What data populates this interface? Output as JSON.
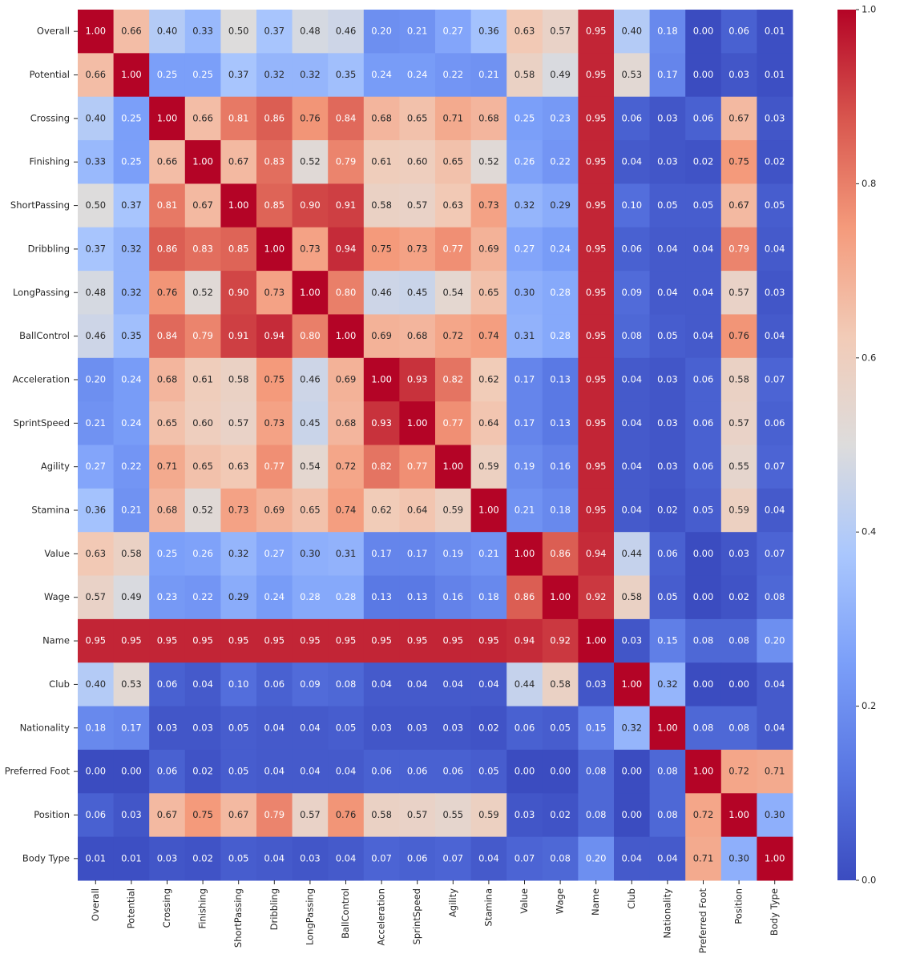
{
  "chart_data": {
    "type": "heatmap",
    "colormap": "coolwarm",
    "x_categories": [
      "Overall",
      "Potential",
      "Crossing",
      "Finishing",
      "ShortPassing",
      "Dribbling",
      "LongPassing",
      "BallControl",
      "Acceleration",
      "SprintSpeed",
      "Agility",
      "Stamina",
      "Value",
      "Wage",
      "Name",
      "Club",
      "Nationality",
      "Preferred Foot",
      "Position",
      "Body Type"
    ],
    "y_categories": [
      "Overall",
      "Potential",
      "Crossing",
      "Finishing",
      "ShortPassing",
      "Dribbling",
      "LongPassing",
      "BallControl",
      "Acceleration",
      "SprintSpeed",
      "Agility",
      "Stamina",
      "Value",
      "Wage",
      "Name",
      "Club",
      "Nationality",
      "Preferred Foot",
      "Position",
      "Body Type"
    ],
    "values": [
      [
        1,
        0.66,
        0.4,
        0.33,
        0.5,
        0.37,
        0.48,
        0.46,
        0.2,
        0.21,
        0.27,
        0.36,
        0.63,
        0.57,
        0.95,
        0.4,
        0.18,
        0,
        0.06,
        0.01
      ],
      [
        0.66,
        1,
        0.25,
        0.25,
        0.37,
        0.32,
        0.32,
        0.35,
        0.24,
        0.24,
        0.22,
        0.21,
        0.58,
        0.49,
        0.95,
        0.53,
        0.17,
        0,
        0.03,
        0.01
      ],
      [
        0.4,
        0.25,
        1,
        0.66,
        0.81,
        0.86,
        0.76,
        0.84,
        0.68,
        0.65,
        0.71,
        0.68,
        0.25,
        0.23,
        0.95,
        0.06,
        0.03,
        0.06,
        0.67,
        0.03
      ],
      [
        0.33,
        0.25,
        0.66,
        1,
        0.67,
        0.83,
        0.52,
        0.79,
        0.61,
        0.6,
        0.65,
        0.52,
        0.26,
        0.22,
        0.95,
        0.04,
        0.03,
        0.02,
        0.75,
        0.02
      ],
      [
        0.5,
        0.37,
        0.81,
        0.67,
        1,
        0.85,
        0.9,
        0.91,
        0.58,
        0.57,
        0.63,
        0.73,
        0.32,
        0.29,
        0.95,
        0.1,
        0.05,
        0.05,
        0.67,
        0.05
      ],
      [
        0.37,
        0.32,
        0.86,
        0.83,
        0.85,
        1,
        0.73,
        0.94,
        0.75,
        0.73,
        0.77,
        0.69,
        0.27,
        0.24,
        0.95,
        0.06,
        0.04,
        0.04,
        0.79,
        0.04
      ],
      [
        0.48,
        0.32,
        0.76,
        0.52,
        0.9,
        0.73,
        1,
        0.8,
        0.46,
        0.45,
        0.54,
        0.65,
        0.3,
        0.28,
        0.95,
        0.09,
        0.04,
        0.04,
        0.57,
        0.03
      ],
      [
        0.46,
        0.35,
        0.84,
        0.79,
        0.91,
        0.94,
        0.8,
        1,
        0.69,
        0.68,
        0.72,
        0.74,
        0.31,
        0.28,
        0.95,
        0.08,
        0.05,
        0.04,
        0.76,
        0.04
      ],
      [
        0.2,
        0.24,
        0.68,
        0.61,
        0.58,
        0.75,
        0.46,
        0.69,
        1,
        0.93,
        0.82,
        0.62,
        0.17,
        0.13,
        0.95,
        0.04,
        0.03,
        0.06,
        0.58,
        0.07
      ],
      [
        0.21,
        0.24,
        0.65,
        0.6,
        0.57,
        0.73,
        0.45,
        0.68,
        0.93,
        1,
        0.77,
        0.64,
        0.17,
        0.13,
        0.95,
        0.04,
        0.03,
        0.06,
        0.57,
        0.06
      ],
      [
        0.27,
        0.22,
        0.71,
        0.65,
        0.63,
        0.77,
        0.54,
        0.72,
        0.82,
        0.77,
        1,
        0.59,
        0.19,
        0.16,
        0.95,
        0.04,
        0.03,
        0.06,
        0.55,
        0.07
      ],
      [
        0.36,
        0.21,
        0.68,
        0.52,
        0.73,
        0.69,
        0.65,
        0.74,
        0.62,
        0.64,
        0.59,
        1,
        0.21,
        0.18,
        0.95,
        0.04,
        0.02,
        0.05,
        0.59,
        0.04
      ],
      [
        0.63,
        0.58,
        0.25,
        0.26,
        0.32,
        0.27,
        0.3,
        0.31,
        0.17,
        0.17,
        0.19,
        0.21,
        1,
        0.86,
        0.94,
        0.44,
        0.06,
        0,
        0.03,
        0.07
      ],
      [
        0.57,
        0.49,
        0.23,
        0.22,
        0.29,
        0.24,
        0.28,
        0.28,
        0.13,
        0.13,
        0.16,
        0.18,
        0.86,
        1,
        0.92,
        0.58,
        0.05,
        0,
        0.02,
        0.08
      ],
      [
        0.95,
        0.95,
        0.95,
        0.95,
        0.95,
        0.95,
        0.95,
        0.95,
        0.95,
        0.95,
        0.95,
        0.95,
        0.94,
        0.92,
        1,
        0.03,
        0.15,
        0.08,
        0.08,
        0.2
      ],
      [
        0.4,
        0.53,
        0.06,
        0.04,
        0.1,
        0.06,
        0.09,
        0.08,
        0.04,
        0.04,
        0.04,
        0.04,
        0.44,
        0.58,
        0.03,
        1,
        0.32,
        0,
        0,
        0.04
      ],
      [
        0.18,
        0.17,
        0.03,
        0.03,
        0.05,
        0.04,
        0.04,
        0.05,
        0.03,
        0.03,
        0.03,
        0.02,
        0.06,
        0.05,
        0.15,
        0.32,
        1,
        0.08,
        0.08,
        0.04
      ],
      [
        0,
        0,
        0.06,
        0.02,
        0.05,
        0.04,
        0.04,
        0.04,
        0.06,
        0.06,
        0.06,
        0.05,
        0,
        0,
        0.08,
        0,
        0.08,
        1,
        0.72,
        0.71
      ],
      [
        0.06,
        0.03,
        0.67,
        0.75,
        0.67,
        0.79,
        0.57,
        0.76,
        0.58,
        0.57,
        0.55,
        0.59,
        0.03,
        0.02,
        0.08,
        0,
        0.08,
        0.72,
        1,
        0.3
      ],
      [
        0.01,
        0.01,
        0.03,
        0.02,
        0.05,
        0.04,
        0.03,
        0.04,
        0.07,
        0.06,
        0.07,
        0.04,
        0.07,
        0.08,
        0.2,
        0.04,
        0.04,
        0.71,
        0.3,
        1
      ]
    ],
    "value_labels": [
      [
        "1.00",
        "0.66",
        "0.40",
        "0.33",
        "0.50",
        "0.37",
        "0.48",
        "0.46",
        "0.20",
        "0.21",
        "0.27",
        "0.36",
        "0.63",
        "0.57",
        "0.95",
        "0.40",
        "0.18",
        "0.00",
        "0.06",
        "0.01"
      ],
      [
        "0.66",
        "1.00",
        "0.25",
        "0.25",
        "0.37",
        "0.32",
        "0.32",
        "0.35",
        "0.24",
        "0.24",
        "0.22",
        "0.21",
        "0.58",
        "0.49",
        "0.95",
        "0.53",
        "0.17",
        "0.00",
        "0.03",
        "0.01"
      ],
      [
        "0.40",
        "0.25",
        "1.00",
        "0.66",
        "0.81",
        "0.86",
        "0.76",
        "0.84",
        "0.68",
        "0.65",
        "0.71",
        "0.68",
        "0.25",
        "0.23",
        "0.95",
        "0.06",
        "0.03",
        "0.06",
        "0.67",
        "0.03"
      ],
      [
        "0.33",
        "0.25",
        "0.66",
        "1.00",
        "0.67",
        "0.83",
        "0.52",
        "0.79",
        "0.61",
        "0.60",
        "0.65",
        "0.52",
        "0.26",
        "0.22",
        "0.95",
        "0.04",
        "0.03",
        "0.02",
        "0.75",
        "0.02"
      ],
      [
        "0.50",
        "0.37",
        "0.81",
        "0.67",
        "1.00",
        "0.85",
        "0.90",
        "0.91",
        "0.58",
        "0.57",
        "0.63",
        "0.73",
        "0.32",
        "0.29",
        "0.95",
        "0.10",
        "0.05",
        "0.05",
        "0.67",
        "0.05"
      ],
      [
        "0.37",
        "0.32",
        "0.86",
        "0.83",
        "0.85",
        "1.00",
        "0.73",
        "0.94",
        "0.75",
        "0.73",
        "0.77",
        "0.69",
        "0.27",
        "0.24",
        "0.95",
        "0.06",
        "0.04",
        "0.04",
        "0.79",
        "0.04"
      ],
      [
        "0.48",
        "0.32",
        "0.76",
        "0.52",
        "0.90",
        "0.73",
        "1.00",
        "0.80",
        "0.46",
        "0.45",
        "0.54",
        "0.65",
        "0.30",
        "0.28",
        "0.95",
        "0.09",
        "0.04",
        "0.04",
        "0.57",
        "0.03"
      ],
      [
        "0.46",
        "0.35",
        "0.84",
        "0.79",
        "0.91",
        "0.94",
        "0.80",
        "1.00",
        "0.69",
        "0.68",
        "0.72",
        "0.74",
        "0.31",
        "0.28",
        "0.95",
        "0.08",
        "0.05",
        "0.04",
        "0.76",
        "0.04"
      ],
      [
        "0.20",
        "0.24",
        "0.68",
        "0.61",
        "0.58",
        "0.75",
        "0.46",
        "0.69",
        "1.00",
        "0.93",
        "0.82",
        "0.62",
        "0.17",
        "0.13",
        "0.95",
        "0.04",
        "0.03",
        "0.06",
        "0.58",
        "0.07"
      ],
      [
        "0.21",
        "0.24",
        "0.65",
        "0.60",
        "0.57",
        "0.73",
        "0.45",
        "0.68",
        "0.93",
        "1.00",
        "0.77",
        "0.64",
        "0.17",
        "0.13",
        "0.95",
        "0.04",
        "0.03",
        "0.06",
        "0.57",
        "0.06"
      ],
      [
        "0.27",
        "0.22",
        "0.71",
        "0.65",
        "0.63",
        "0.77",
        "0.54",
        "0.72",
        "0.82",
        "0.77",
        "1.00",
        "0.59",
        "0.19",
        "0.16",
        "0.95",
        "0.04",
        "0.03",
        "0.06",
        "0.55",
        "0.07"
      ],
      [
        "0.36",
        "0.21",
        "0.68",
        "0.52",
        "0.73",
        "0.69",
        "0.65",
        "0.74",
        "0.62",
        "0.64",
        "0.59",
        "1.00",
        "0.21",
        "0.18",
        "0.95",
        "0.04",
        "0.02",
        "0.05",
        "0.59",
        "0.04"
      ],
      [
        "0.63",
        "0.58",
        "0.25",
        "0.26",
        "0.32",
        "0.27",
        "0.30",
        "0.31",
        "0.17",
        "0.17",
        "0.19",
        "0.21",
        "1.00",
        "0.86",
        "0.94",
        "0.44",
        "0.06",
        "0.00",
        "0.03",
        "0.07"
      ],
      [
        "0.57",
        "0.49",
        "0.23",
        "0.22",
        "0.29",
        "0.24",
        "0.28",
        "0.28",
        "0.13",
        "0.13",
        "0.16",
        "0.18",
        "0.86",
        "1.00",
        "0.92",
        "0.58",
        "0.05",
        "0.00",
        "0.02",
        "0.08"
      ],
      [
        "0.95",
        "0.95",
        "0.95",
        "0.95",
        "0.95",
        "0.95",
        "0.95",
        "0.95",
        "0.95",
        "0.95",
        "0.95",
        "0.95",
        "0.94",
        "0.92",
        "1.00",
        "0.03",
        "0.15",
        "0.08",
        "0.08",
        "0.20"
      ],
      [
        "0.40",
        "0.53",
        "0.06",
        "0.04",
        "0.10",
        "0.06",
        "0.09",
        "0.08",
        "0.04",
        "0.04",
        "0.04",
        "0.04",
        "0.44",
        "0.58",
        "0.03",
        "1.00",
        "0.32",
        "0.00",
        "0.00",
        "0.04"
      ],
      [
        "0.18",
        "0.17",
        "0.03",
        "0.03",
        "0.05",
        "0.04",
        "0.04",
        "0.05",
        "0.03",
        "0.03",
        "0.03",
        "0.02",
        "0.06",
        "0.05",
        "0.15",
        "0.32",
        "1.00",
        "0.08",
        "0.08",
        "0.04"
      ],
      [
        "0.00",
        "0.00",
        "0.06",
        "0.02",
        "0.05",
        "0.04",
        "0.04",
        "0.04",
        "0.06",
        "0.06",
        "0.06",
        "0.05",
        "0.00",
        "0.00",
        "0.08",
        "0.00",
        "0.08",
        "1.00",
        "0.72",
        "0.71"
      ],
      [
        "0.06",
        "0.03",
        "0.67",
        "0.75",
        "0.67",
        "0.79",
        "0.57",
        "0.76",
        "0.58",
        "0.57",
        "0.55",
        "0.59",
        "0.03",
        "0.02",
        "0.08",
        "0.00",
        "0.08",
        "0.72",
        "1.00",
        "0.30"
      ],
      [
        "0.01",
        "0.01",
        "0.03",
        "0.02",
        "0.05",
        "0.04",
        "0.03",
        "0.04",
        "0.07",
        "0.06",
        "0.07",
        "0.04",
        "0.07",
        "0.08",
        "0.20",
        "0.04",
        "0.04",
        "0.71",
        "0.30",
        "1.00"
      ]
    ],
    "zlim": [
      0,
      1
    ],
    "colorbar_ticks": [
      {
        "value": 0,
        "label": "0.0"
      },
      0.2,
      0.4,
      0.6,
      0.8,
      {
        "value": 1,
        "label": "1.0"
      }
    ]
  }
}
